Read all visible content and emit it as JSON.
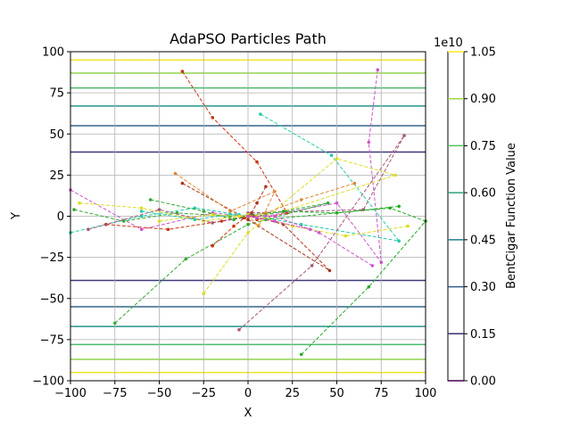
{
  "chart_data": {
    "type": "line",
    "title": "AdaPSO Particles Path",
    "xlabel": "X",
    "ylabel": "Y",
    "xlim": [
      -100,
      100
    ],
    "ylim": [
      -100,
      100
    ],
    "xticks": [
      "−100",
      "−75",
      "−50",
      "−25",
      "0",
      "25",
      "50",
      "75",
      "100"
    ],
    "yticks": [
      "−100",
      "−75",
      "−50",
      "−25",
      "0",
      "25",
      "50",
      "75",
      "100"
    ],
    "grid": true,
    "contour": {
      "levels_y": [
        95,
        87,
        78,
        67,
        55,
        39,
        -39,
        -55,
        -67,
        -78,
        -87,
        -95
      ],
      "level_values": [
        0.98,
        0.83,
        0.68,
        0.52,
        0.33,
        0.17,
        0.17,
        0.33,
        0.52,
        0.68,
        0.83,
        0.98
      ]
    },
    "colorbar": {
      "label": "BentCigar Function Value",
      "exponent": "1e10",
      "ticks": [
        "0.00",
        "0.15",
        "0.30",
        "0.45",
        "0.60",
        "0.75",
        "0.90",
        "1.05"
      ],
      "range": [
        0,
        1.05
      ]
    },
    "paths": [
      {
        "color": "#cc3311",
        "points": [
          [
            -37,
            88
          ],
          [
            -20,
            60
          ],
          [
            5,
            33
          ],
          [
            22,
            2
          ],
          [
            5,
            -2
          ]
        ]
      },
      {
        "color": "#cc55cc",
        "points": [
          [
            73,
            89
          ],
          [
            68,
            45
          ],
          [
            75,
            -28
          ],
          [
            50,
            8
          ],
          [
            10,
            0
          ]
        ]
      },
      {
        "color": "#22ccaa",
        "points": [
          [
            7,
            62
          ],
          [
            47,
            37
          ],
          [
            85,
            -15
          ],
          [
            30,
            -5
          ],
          [
            0,
            1
          ]
        ]
      },
      {
        "color": "#dddd22",
        "points": [
          [
            -25,
            -47
          ],
          [
            0,
            -10
          ],
          [
            50,
            35
          ],
          [
            83,
            25
          ],
          [
            20,
            3
          ]
        ]
      },
      {
        "color": "#33aa33",
        "points": [
          [
            -75,
            -65
          ],
          [
            -35,
            -26
          ],
          [
            0,
            -5
          ],
          [
            45,
            8
          ],
          [
            5,
            0
          ]
        ]
      },
      {
        "color": "#22aa22",
        "points": [
          [
            30,
            -84
          ],
          [
            68,
            -43
          ],
          [
            100,
            -3
          ],
          [
            80,
            5
          ],
          [
            10,
            -2
          ]
        ]
      },
      {
        "color": "#aa5577",
        "points": [
          [
            -5,
            -69
          ],
          [
            36,
            -30
          ],
          [
            88,
            49
          ],
          [
            65,
            4
          ],
          [
            0,
            2
          ]
        ]
      },
      {
        "color": "#aa3322",
        "points": [
          [
            -37,
            20
          ],
          [
            0,
            -2
          ],
          [
            46,
            -33
          ],
          [
            20,
            -5
          ],
          [
            3,
            0
          ]
        ]
      },
      {
        "color": "#dd8833",
        "points": [
          [
            -41,
            26
          ],
          [
            -10,
            3
          ],
          [
            15,
            15
          ],
          [
            6,
            -6
          ],
          [
            0,
            0
          ]
        ]
      },
      {
        "color": "#cc55cc",
        "points": [
          [
            -100,
            16
          ],
          [
            -60,
            -8
          ],
          [
            -20,
            2
          ],
          [
            0,
            0
          ]
        ]
      },
      {
        "color": "#22ccaa",
        "points": [
          [
            -100,
            -10
          ],
          [
            -60,
            0
          ],
          [
            -30,
            5
          ],
          [
            -5,
            1
          ]
        ]
      },
      {
        "color": "#dddd22",
        "points": [
          [
            -95,
            8
          ],
          [
            -60,
            5
          ],
          [
            -25,
            -3
          ],
          [
            0,
            1
          ]
        ]
      },
      {
        "color": "#33aa33",
        "points": [
          [
            -98,
            4
          ],
          [
            -70,
            -3
          ],
          [
            -40,
            2
          ],
          [
            -10,
            0
          ]
        ]
      },
      {
        "color": "#cc3311",
        "points": [
          [
            -80,
            -5
          ],
          [
            -45,
            -8
          ],
          [
            -15,
            -3
          ],
          [
            2,
            1
          ]
        ]
      },
      {
        "color": "#aa5577",
        "points": [
          [
            -90,
            -8
          ],
          [
            -50,
            4
          ],
          [
            -20,
            -4
          ],
          [
            -3,
            -1
          ]
        ]
      },
      {
        "color": "#dddd22",
        "points": [
          [
            90,
            -6
          ],
          [
            55,
            -12
          ],
          [
            25,
            -6
          ],
          [
            5,
            0
          ]
        ]
      },
      {
        "color": "#22aa22",
        "points": [
          [
            85,
            6
          ],
          [
            50,
            2
          ],
          [
            20,
            3
          ],
          [
            2,
            1
          ]
        ]
      },
      {
        "color": "#cc55cc",
        "points": [
          [
            70,
            -30
          ],
          [
            40,
            -10
          ],
          [
            15,
            0
          ],
          [
            0,
            0
          ]
        ]
      },
      {
        "color": "#dd8833",
        "points": [
          [
            60,
            20
          ],
          [
            30,
            10
          ],
          [
            10,
            2
          ],
          [
            1,
            0
          ]
        ]
      },
      {
        "color": "#22ccaa",
        "points": [
          [
            -60,
            3
          ],
          [
            -30,
            -2
          ],
          [
            -10,
            1
          ],
          [
            0,
            0
          ]
        ]
      },
      {
        "color": "#cc3311",
        "points": [
          [
            -20,
            -18
          ],
          [
            -8,
            -6
          ],
          [
            -2,
            -1
          ],
          [
            0,
            0
          ]
        ]
      },
      {
        "color": "#33aa33",
        "points": [
          [
            -55,
            10
          ],
          [
            -25,
            3
          ],
          [
            -8,
            -2
          ],
          [
            0,
            0
          ]
        ]
      },
      {
        "color": "#aa3322",
        "points": [
          [
            10,
            18
          ],
          [
            5,
            8
          ],
          [
            2,
            2
          ],
          [
            0,
            0
          ]
        ]
      },
      {
        "color": "#dddd22",
        "points": [
          [
            -50,
            -3
          ],
          [
            -20,
            1
          ],
          [
            -5,
            0
          ],
          [
            0,
            0
          ]
        ]
      },
      {
        "color": "#cc55cc",
        "points": [
          [
            35,
            -8
          ],
          [
            15,
            -3
          ],
          [
            5,
            -1
          ],
          [
            0,
            0
          ]
        ]
      }
    ]
  }
}
